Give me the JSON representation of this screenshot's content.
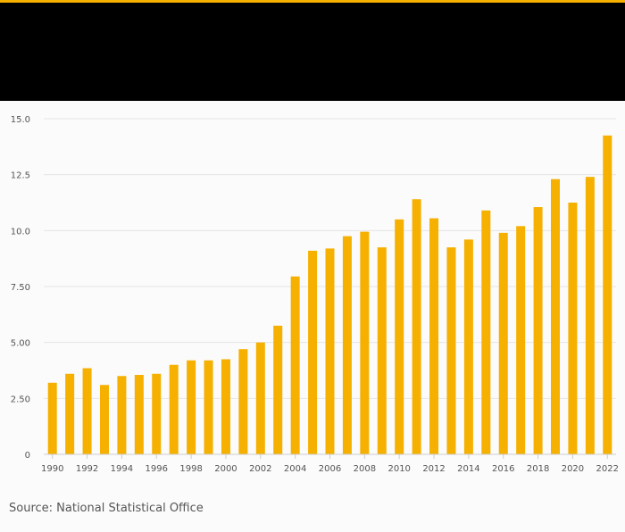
{
  "source": "Source: National Statistical Office",
  "colors": {
    "accent": "#f5b000",
    "header": "#000000",
    "bar": "#f5b000",
    "grid": "#e6e6e6",
    "axis": "#cccccc",
    "tick_text": "#555555"
  },
  "chart_data": {
    "type": "bar",
    "title": "",
    "xlabel": "",
    "ylabel": "",
    "ylim": [
      0,
      15
    ],
    "yticks": [
      0,
      2.5,
      5,
      7.5,
      10,
      12.5,
      15
    ],
    "ytick_labels": [
      "0",
      "2.50",
      "5.00",
      "7.50",
      "10.0",
      "12.5",
      "15.0"
    ],
    "categories": [
      "1990",
      "1991",
      "1992",
      "1993",
      "1994",
      "1995",
      "1996",
      "1997",
      "1998",
      "1999",
      "2000",
      "2001",
      "2002",
      "2003",
      "2004",
      "2005",
      "2006",
      "2007",
      "2008",
      "2009",
      "2010",
      "2011",
      "2012",
      "2013",
      "2014",
      "2015",
      "2016",
      "2017",
      "2018",
      "2019",
      "2020",
      "2021",
      "2022"
    ],
    "x_tick_labels": [
      "1990",
      "1992",
      "1994",
      "1996",
      "1998",
      "2000",
      "2002",
      "2004",
      "2006",
      "2008",
      "2010",
      "2012",
      "2014",
      "2016",
      "2018",
      "2020",
      "2022"
    ],
    "values": [
      3.2,
      3.6,
      3.85,
      3.1,
      3.5,
      3.55,
      3.6,
      4.0,
      4.2,
      4.2,
      4.25,
      4.7,
      5.0,
      5.75,
      7.95,
      9.1,
      9.2,
      9.75,
      9.95,
      9.25,
      10.5,
      11.4,
      10.55,
      9.25,
      9.6,
      10.9,
      9.9,
      10.2,
      11.05,
      12.3,
      11.25,
      12.4,
      14.25
    ]
  }
}
